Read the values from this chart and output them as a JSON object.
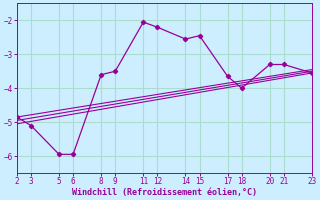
{
  "xlabel": "Windchill (Refroidissement éolien,°C)",
  "bg_color": "#cceeff",
  "grid_color": "#aaddcc",
  "line_color": "#990099",
  "xlim": [
    2,
    23
  ],
  "ylim": [
    -6.5,
    -1.5
  ],
  "xticks": [
    2,
    3,
    5,
    6,
    8,
    9,
    11,
    12,
    14,
    15,
    17,
    18,
    20,
    21,
    23
  ],
  "yticks": [
    -2,
    -3,
    -4,
    -5,
    -6
  ],
  "series1_x": [
    2,
    3,
    5,
    6,
    8,
    9,
    11,
    12,
    14,
    15,
    17,
    18,
    20,
    21,
    23
  ],
  "series1_y": [
    -4.85,
    -5.1,
    -5.95,
    -5.95,
    -3.6,
    -3.5,
    -2.05,
    -2.2,
    -2.55,
    -2.45,
    -3.65,
    -4.0,
    -3.3,
    -3.3,
    -3.55
  ],
  "series2_x": [
    2,
    23
  ],
  "series2_y": [
    -4.85,
    -3.45
  ],
  "series3_x": [
    2,
    23
  ],
  "series3_y": [
    -5.05,
    -3.55
  ],
  "series4_x": [
    2,
    23
  ],
  "series4_y": [
    -4.95,
    -3.5
  ]
}
